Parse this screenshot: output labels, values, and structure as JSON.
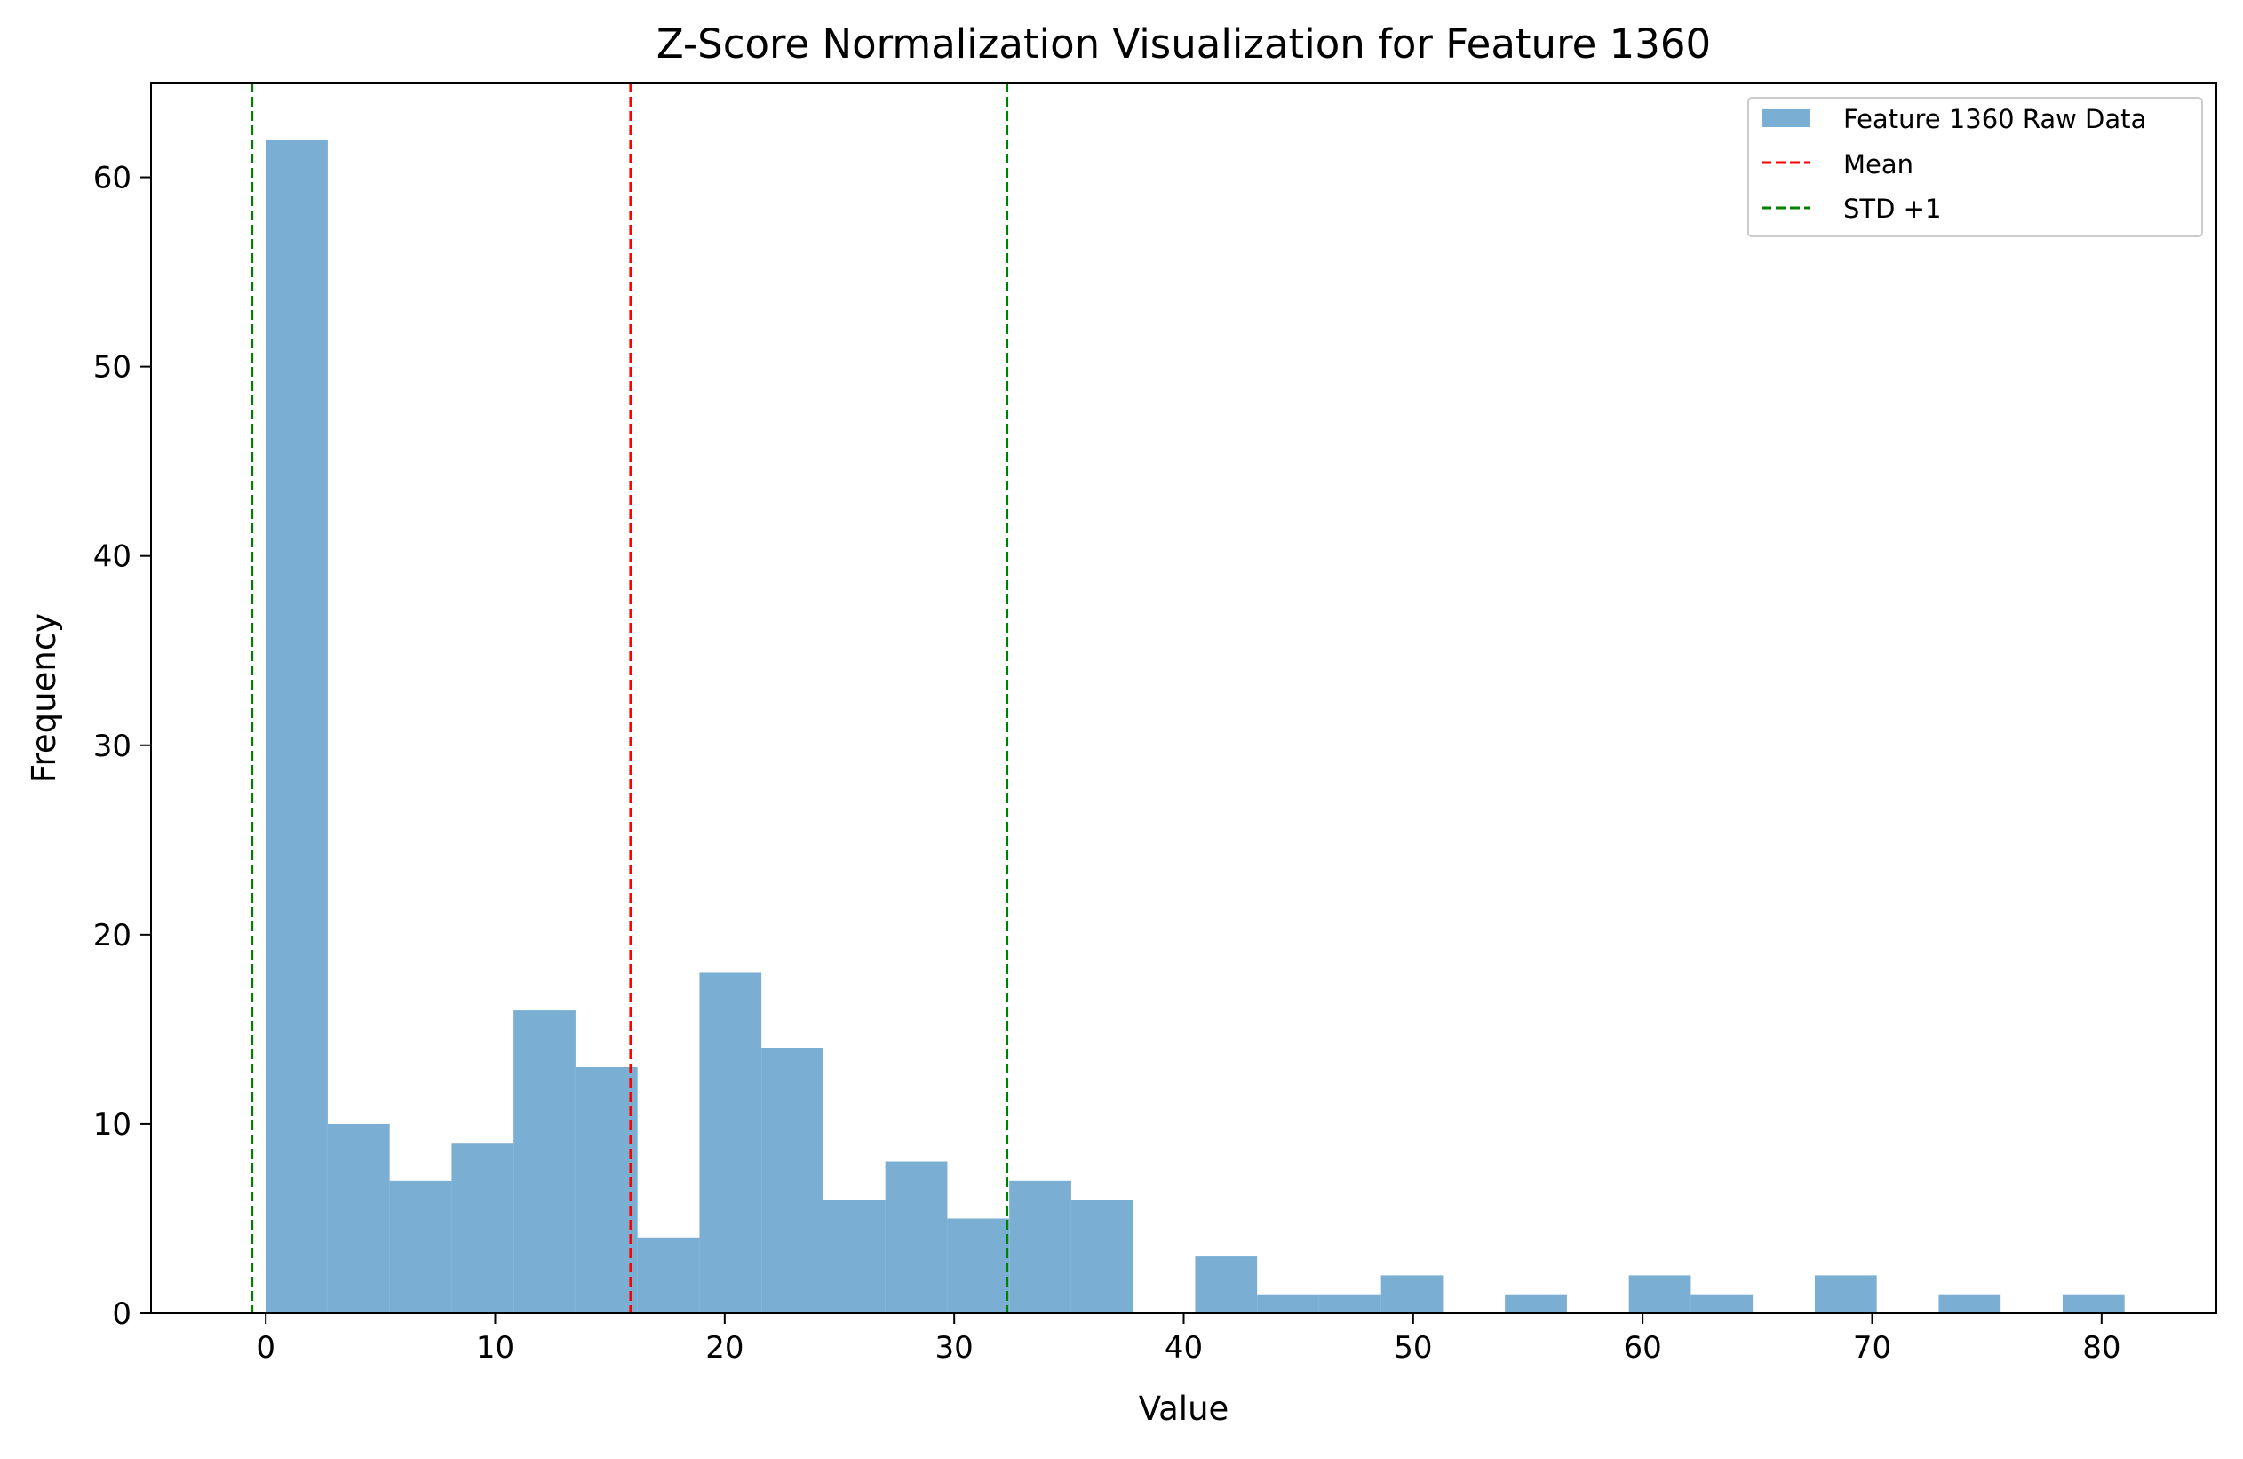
{
  "chart_data": {
    "type": "bar",
    "title": "Z-Score Normalization Visualization for Feature 1360",
    "xlabel": "Value",
    "ylabel": "Frequency",
    "xlim": [
      -5,
      85
    ],
    "ylim": [
      0,
      65
    ],
    "xticks": [
      0,
      10,
      20,
      30,
      40,
      50,
      60,
      70,
      80
    ],
    "yticks": [
      0,
      10,
      20,
      30,
      40,
      50,
      60
    ],
    "grid": false,
    "legend_position": "top-right",
    "legend": [
      "Feature 1360 Raw Data",
      "Mean",
      "STD +1"
    ],
    "bins": {
      "start": 0,
      "width": 2.7,
      "counts": [
        62,
        10,
        7,
        9,
        16,
        13,
        4,
        18,
        14,
        6,
        8,
        5,
        7,
        6,
        0,
        3,
        1,
        1,
        2,
        0,
        1,
        0,
        2,
        1,
        0,
        2,
        0,
        1,
        0,
        1
      ]
    },
    "lines": [
      {
        "name": "Mean",
        "x": 15.9,
        "color": "#ff0000",
        "style": "dashed"
      },
      {
        "name": "STD +1",
        "x": -0.6,
        "color": "#008000",
        "style": "dashed"
      },
      {
        "name": "STD +1",
        "x": 32.3,
        "color": "#008000",
        "style": "dashed"
      }
    ],
    "colors": {
      "bars": "#7aaed3",
      "axis": "#000000"
    }
  }
}
